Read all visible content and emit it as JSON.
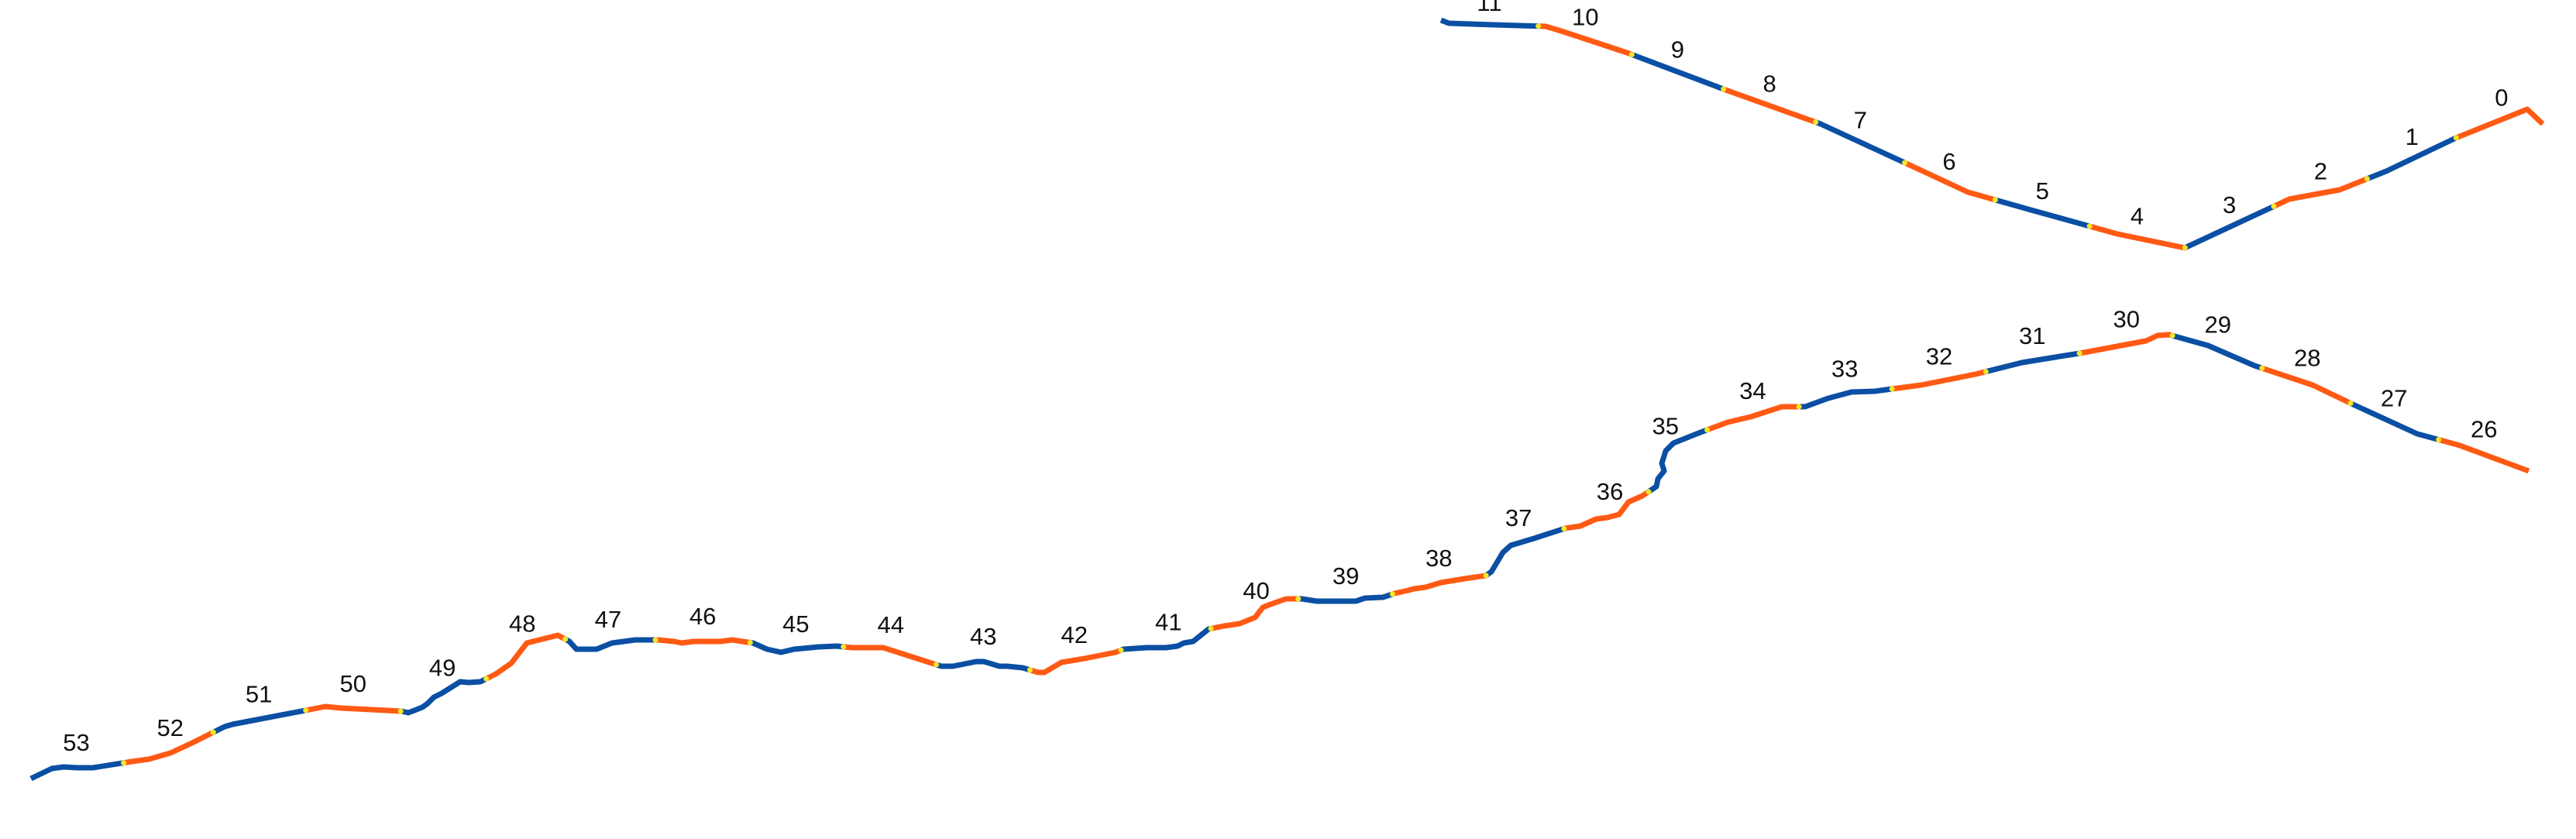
{
  "colors": {
    "odd_segment": "#0a4fa3",
    "even_segment": "#ff5a14",
    "joint_marker": "#f2e62c",
    "label_text": "#111111"
  },
  "segments": [
    {
      "id": "0",
      "label": "0"
    },
    {
      "id": "1",
      "label": "1"
    },
    {
      "id": "2",
      "label": "2"
    },
    {
      "id": "3",
      "label": "3"
    },
    {
      "id": "4",
      "label": "4"
    },
    {
      "id": "5",
      "label": "5"
    },
    {
      "id": "6",
      "label": "6"
    },
    {
      "id": "7",
      "label": "7"
    },
    {
      "id": "8",
      "label": "8"
    },
    {
      "id": "9",
      "label": "9"
    },
    {
      "id": "10",
      "label": "10"
    },
    {
      "id": "11",
      "label": "11"
    },
    {
      "id": "26",
      "label": "26"
    },
    {
      "id": "27",
      "label": "27"
    },
    {
      "id": "28",
      "label": "28"
    },
    {
      "id": "29",
      "label": "29"
    },
    {
      "id": "30",
      "label": "30"
    },
    {
      "id": "31",
      "label": "31"
    },
    {
      "id": "32",
      "label": "32"
    },
    {
      "id": "33",
      "label": "33"
    },
    {
      "id": "34",
      "label": "34"
    },
    {
      "id": "35",
      "label": "35"
    },
    {
      "id": "36",
      "label": "36"
    },
    {
      "id": "37",
      "label": "37"
    },
    {
      "id": "38",
      "label": "38"
    },
    {
      "id": "39",
      "label": "39"
    },
    {
      "id": "40",
      "label": "40"
    },
    {
      "id": "41",
      "label": "41"
    },
    {
      "id": "42",
      "label": "42"
    },
    {
      "id": "43",
      "label": "43"
    },
    {
      "id": "44",
      "label": "44"
    },
    {
      "id": "45",
      "label": "45"
    },
    {
      "id": "46",
      "label": "46"
    },
    {
      "id": "47",
      "label": "47"
    },
    {
      "id": "48",
      "label": "48"
    },
    {
      "id": "49",
      "label": "49"
    },
    {
      "id": "50",
      "label": "50"
    },
    {
      "id": "51",
      "label": "51"
    },
    {
      "id": "52",
      "label": "52"
    },
    {
      "id": "53",
      "label": "53"
    }
  ]
}
